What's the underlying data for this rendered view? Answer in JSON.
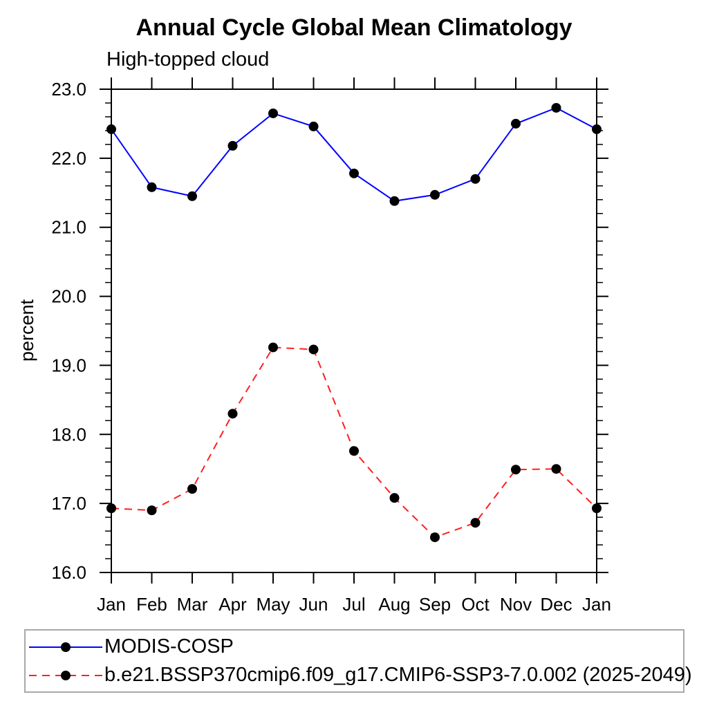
{
  "chart_data": {
    "type": "line",
    "title": "Annual Cycle Global Mean Climatology",
    "subtitle": "High-topped cloud",
    "ylabel": "percent",
    "xlabel": "",
    "categories": [
      "Jan",
      "Feb",
      "Mar",
      "Apr",
      "May",
      "Jun",
      "Jul",
      "Aug",
      "Sep",
      "Oct",
      "Nov",
      "Dec",
      "Jan"
    ],
    "ylim": [
      16.0,
      23.0
    ],
    "ytick_interval": 1.0,
    "ytick_minor_interval": 0.2,
    "ytick_labels": [
      "16.0",
      "17.0",
      "18.0",
      "19.0",
      "20.0",
      "21.0",
      "22.0",
      "23.0"
    ],
    "grid": false,
    "legend_position": "bottom",
    "frame_color": "#000000",
    "marker": {
      "shape": "filled-circle",
      "color": "#000000",
      "radius": 7
    },
    "series": [
      {
        "name": "MODIS-COSP",
        "color": "#0000ff",
        "line_style": "solid",
        "values": [
          22.42,
          21.58,
          21.45,
          22.18,
          22.65,
          22.46,
          21.78,
          21.38,
          21.47,
          21.7,
          22.5,
          22.73,
          22.42
        ]
      },
      {
        "name": "b.e21.BSSP370cmip6.f09_g17.CMIP6-SSP3-7.0.002 (2025-2049)",
        "color": "#ff1f1f",
        "line_style": "dashed",
        "values": [
          16.93,
          16.9,
          17.21,
          18.3,
          19.26,
          19.23,
          17.76,
          17.08,
          16.51,
          16.72,
          17.49,
          17.5,
          16.93
        ]
      }
    ]
  }
}
